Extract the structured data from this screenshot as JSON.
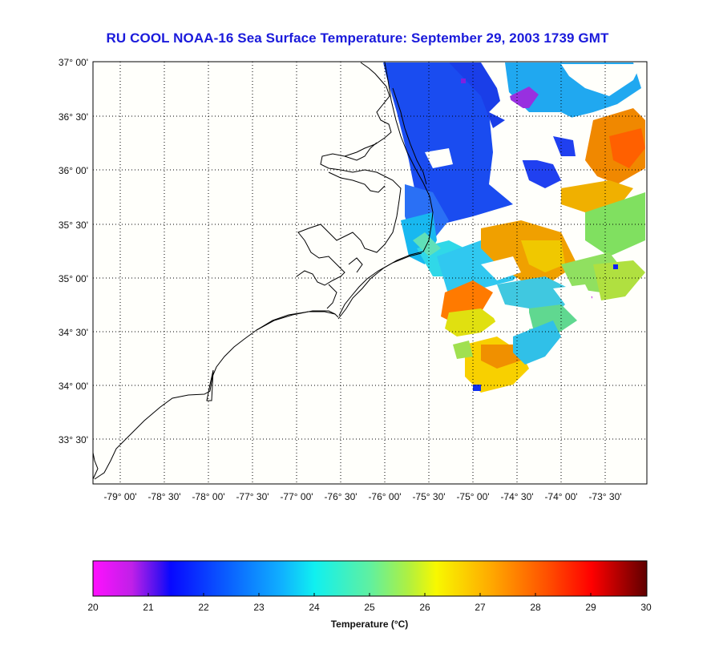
{
  "title": "RU COOL  NOAA-16  Sea Surface Temperature:  September 29, 2003 1739 GMT",
  "map": {
    "lat_ticks": [
      "37° 00'",
      "36° 30'",
      "36° 00'",
      "35° 30'",
      "35° 00'",
      "34° 30'",
      "34° 00'",
      "33° 30'"
    ],
    "lon_ticks": [
      "-79° 00'",
      "-78° 30'",
      "-78° 00'",
      "-77° 30'",
      "-77° 00'",
      "-76° 30'",
      "-76° 00'",
      "-75° 30'",
      "-75° 00'",
      "-74° 30'",
      "-74° 00'",
      "-73° 30'"
    ],
    "grid": true,
    "background": "#fffffb"
  },
  "colorbar": {
    "label": "Temperature (°C)",
    "min": 20,
    "max": 30,
    "ticks": [
      "20",
      "21",
      "22",
      "23",
      "24",
      "25",
      "26",
      "27",
      "28",
      "29",
      "30"
    ],
    "colors": [
      "#ff10ff",
      "#b020e0",
      "#1010ff",
      "#0a6cff",
      "#18c8ff",
      "#30f0d0",
      "#9af070",
      "#f8f800",
      "#ffa000",
      "#ff3000",
      "#ff0000",
      "#600000"
    ]
  }
}
